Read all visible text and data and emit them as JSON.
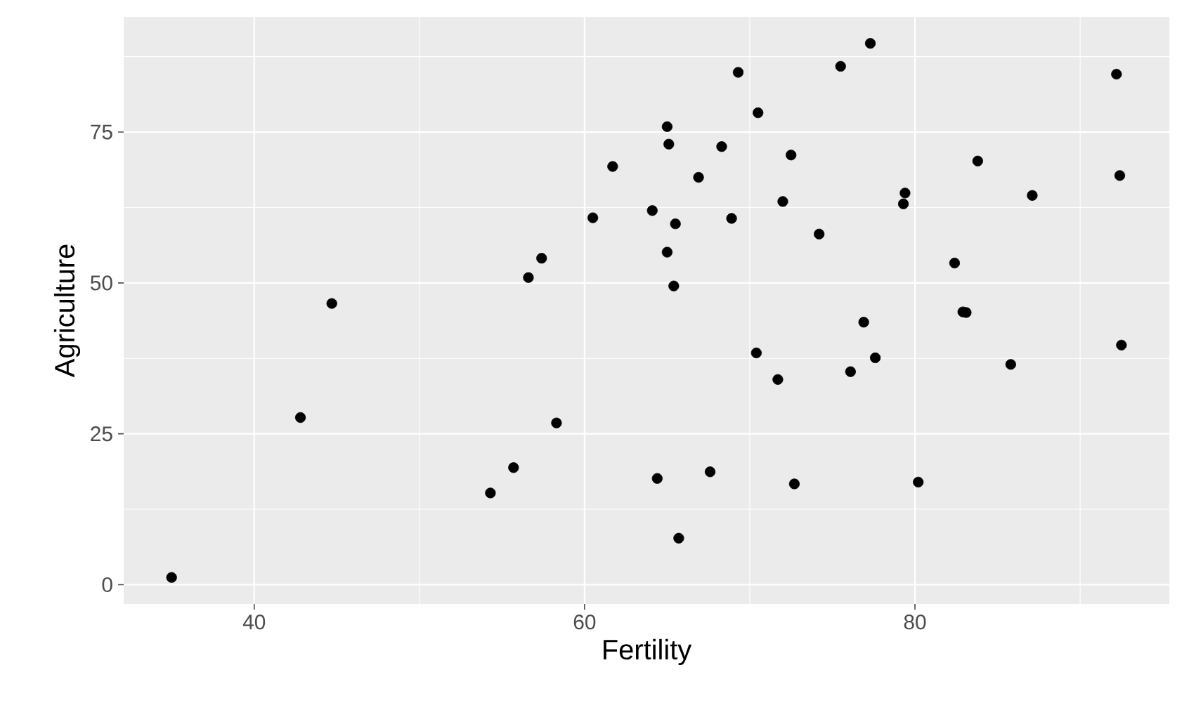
{
  "chart_data": {
    "type": "scatter",
    "xlabel": "Fertility",
    "ylabel": "Agriculture",
    "x": [
      80.2,
      83.1,
      92.5,
      85.8,
      76.9,
      76.1,
      83.8,
      92.4,
      82.4,
      82.9,
      87.1,
      64.1,
      66.9,
      68.9,
      61.7,
      68.3,
      71.7,
      55.7,
      54.3,
      65.1,
      65.5,
      65.0,
      56.6,
      57.4,
      72.5,
      74.2,
      72.0,
      60.5,
      58.3,
      65.4,
      75.5,
      69.3,
      77.3,
      70.5,
      79.4,
      65.0,
      92.2,
      79.3,
      70.4,
      65.7,
      72.7,
      64.4,
      77.6,
      67.6,
      35.0,
      44.7,
      42.8
    ],
    "values": [
      17.0,
      45.1,
      39.7,
      36.5,
      43.5,
      35.3,
      70.2,
      67.8,
      53.3,
      45.2,
      64.5,
      62.0,
      67.5,
      60.7,
      69.3,
      72.6,
      34.0,
      19.4,
      15.2,
      73.0,
      59.8,
      55.1,
      50.9,
      54.1,
      71.2,
      58.1,
      63.5,
      60.8,
      26.8,
      49.5,
      85.9,
      84.9,
      89.7,
      78.2,
      64.9,
      75.9,
      84.6,
      63.1,
      38.4,
      7.7,
      16.7,
      17.6,
      37.6,
      18.7,
      1.2,
      46.6,
      27.7
    ],
    "color": "#000000",
    "marker": "circle",
    "xlim": [
      32.1,
      95.4
    ],
    "ylim": [
      -3.2,
      94.1
    ],
    "xticks": [
      40,
      60,
      80
    ],
    "yticks": [
      0,
      25,
      50,
      75
    ],
    "grid": true
  }
}
